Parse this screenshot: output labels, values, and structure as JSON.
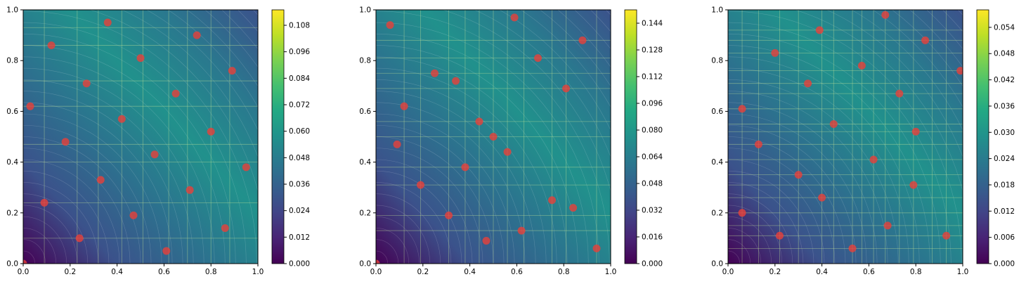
{
  "chart_data": [
    {
      "type": "scatter",
      "title": "",
      "xlabel": "",
      "ylabel": "",
      "xlim": [
        0.0,
        1.0
      ],
      "ylim": [
        0.0,
        1.0
      ],
      "x_ticks": [
        "0.0",
        "0.2",
        "0.4",
        "0.6",
        "0.8",
        "1.0"
      ],
      "y_ticks": [
        "0.0",
        "0.2",
        "0.4",
        "0.6",
        "0.8",
        "1.0"
      ],
      "background": "filled contour field (viridis) partitioned into rectangular cells",
      "colormap": "viridis",
      "colorbar": {
        "range": [
          0.0,
          0.115
        ],
        "ticks": [
          "0.000",
          "0.012",
          "0.024",
          "0.036",
          "0.048",
          "0.060",
          "0.072",
          "0.084",
          "0.096",
          "0.108"
        ]
      },
      "grid_lines_x": [
        0.09,
        0.23,
        0.32,
        0.42,
        0.51,
        0.62,
        0.7,
        0.8,
        0.88
      ],
      "grid_lines_y": [
        0.1,
        0.24,
        0.4,
        0.47,
        0.62,
        0.72,
        0.86,
        0.93
      ],
      "points": {
        "color": "#e8403a",
        "x": [
          0.0,
          0.03,
          0.09,
          0.12,
          0.18,
          0.24,
          0.27,
          0.33,
          0.36,
          0.42,
          0.47,
          0.5,
          0.56,
          0.61,
          0.65,
          0.71,
          0.74,
          0.8,
          0.86,
          0.89,
          0.95
        ],
        "y": [
          0.0,
          0.62,
          0.24,
          0.86,
          0.48,
          0.1,
          0.71,
          0.33,
          0.95,
          0.57,
          0.19,
          0.81,
          0.43,
          0.05,
          0.67,
          0.29,
          0.9,
          0.52,
          0.14,
          0.76,
          0.38
        ]
      }
    },
    {
      "type": "scatter",
      "title": "",
      "xlabel": "",
      "ylabel": "",
      "xlim": [
        0.0,
        1.0
      ],
      "ylim": [
        0.0,
        1.0
      ],
      "x_ticks": [
        "0.0",
        "0.2",
        "0.4",
        "0.6",
        "0.8",
        "1.0"
      ],
      "y_ticks": [
        "0.0",
        "0.2",
        "0.4",
        "0.6",
        "0.8",
        "1.0"
      ],
      "background": "filled contour field (viridis) partitioned into rectangular cells",
      "colormap": "viridis",
      "colorbar": {
        "range": [
          0.0,
          0.152
        ],
        "ticks": [
          "0.000",
          "0.016",
          "0.032",
          "0.048",
          "0.064",
          "0.080",
          "0.096",
          "0.112",
          "0.128",
          "0.144"
        ]
      },
      "grid_lines_x": [
        0.12,
        0.19,
        0.31,
        0.38,
        0.44,
        0.5,
        0.56,
        0.63,
        0.75,
        0.81,
        0.94
      ],
      "grid_lines_y": [
        0.13,
        0.19,
        0.31,
        0.38,
        0.5,
        0.56,
        0.69,
        0.75,
        0.81,
        0.88
      ],
      "points": {
        "color": "#e8403a",
        "x": [
          0.0,
          0.06,
          0.09,
          0.12,
          0.19,
          0.25,
          0.31,
          0.34,
          0.38,
          0.44,
          0.5,
          0.56,
          0.59,
          0.62,
          0.69,
          0.75,
          0.81,
          0.84,
          0.88,
          0.94,
          0.47
        ],
        "y": [
          0.0,
          0.94,
          0.47,
          0.62,
          0.31,
          0.75,
          0.19,
          0.72,
          0.38,
          0.56,
          0.5,
          0.44,
          0.97,
          0.13,
          0.81,
          0.25,
          0.69,
          0.22,
          0.88,
          0.06,
          0.09
        ]
      }
    },
    {
      "type": "scatter",
      "title": "",
      "xlabel": "",
      "ylabel": "",
      "xlim": [
        0.0,
        1.0
      ],
      "ylim": [
        0.0,
        1.0
      ],
      "x_ticks": [
        "0.0",
        "0.2",
        "0.4",
        "0.6",
        "0.8",
        "1.0"
      ],
      "y_ticks": [
        "0.0",
        "0.2",
        "0.4",
        "0.6",
        "0.8",
        "1.0"
      ],
      "background": "filled contour field (viridis) partitioned into rectangular cells",
      "colormap": "viridis",
      "colorbar": {
        "range": [
          0.0,
          0.058
        ],
        "ticks": [
          "0.000",
          "0.006",
          "0.012",
          "0.018",
          "0.024",
          "0.030",
          "0.036",
          "0.042",
          "0.048",
          "0.054"
        ]
      },
      "grid_lines_x": [
        0.06,
        0.13,
        0.22,
        0.3,
        0.4,
        0.45,
        0.53,
        0.57,
        0.62,
        0.67,
        0.73,
        0.79,
        0.87,
        0.93
      ],
      "grid_lines_y": [
        0.06,
        0.11,
        0.15,
        0.2,
        0.26,
        0.31,
        0.35,
        0.41,
        0.47,
        0.52,
        0.55,
        0.61,
        0.67,
        0.71,
        0.76,
        0.83,
        0.88,
        0.92
      ],
      "points": {
        "color": "#e8403a",
        "x": [
          0.06,
          0.06,
          0.13,
          0.2,
          0.22,
          0.3,
          0.34,
          0.39,
          0.4,
          0.45,
          0.53,
          0.57,
          0.62,
          0.67,
          0.68,
          0.73,
          0.79,
          0.8,
          0.84,
          0.93,
          0.99
        ],
        "y": [
          0.2,
          0.61,
          0.47,
          0.83,
          0.11,
          0.35,
          0.71,
          0.92,
          0.26,
          0.55,
          0.06,
          0.78,
          0.41,
          0.98,
          0.15,
          0.67,
          0.31,
          0.52,
          0.88,
          0.11,
          0.76
        ]
      }
    }
  ]
}
